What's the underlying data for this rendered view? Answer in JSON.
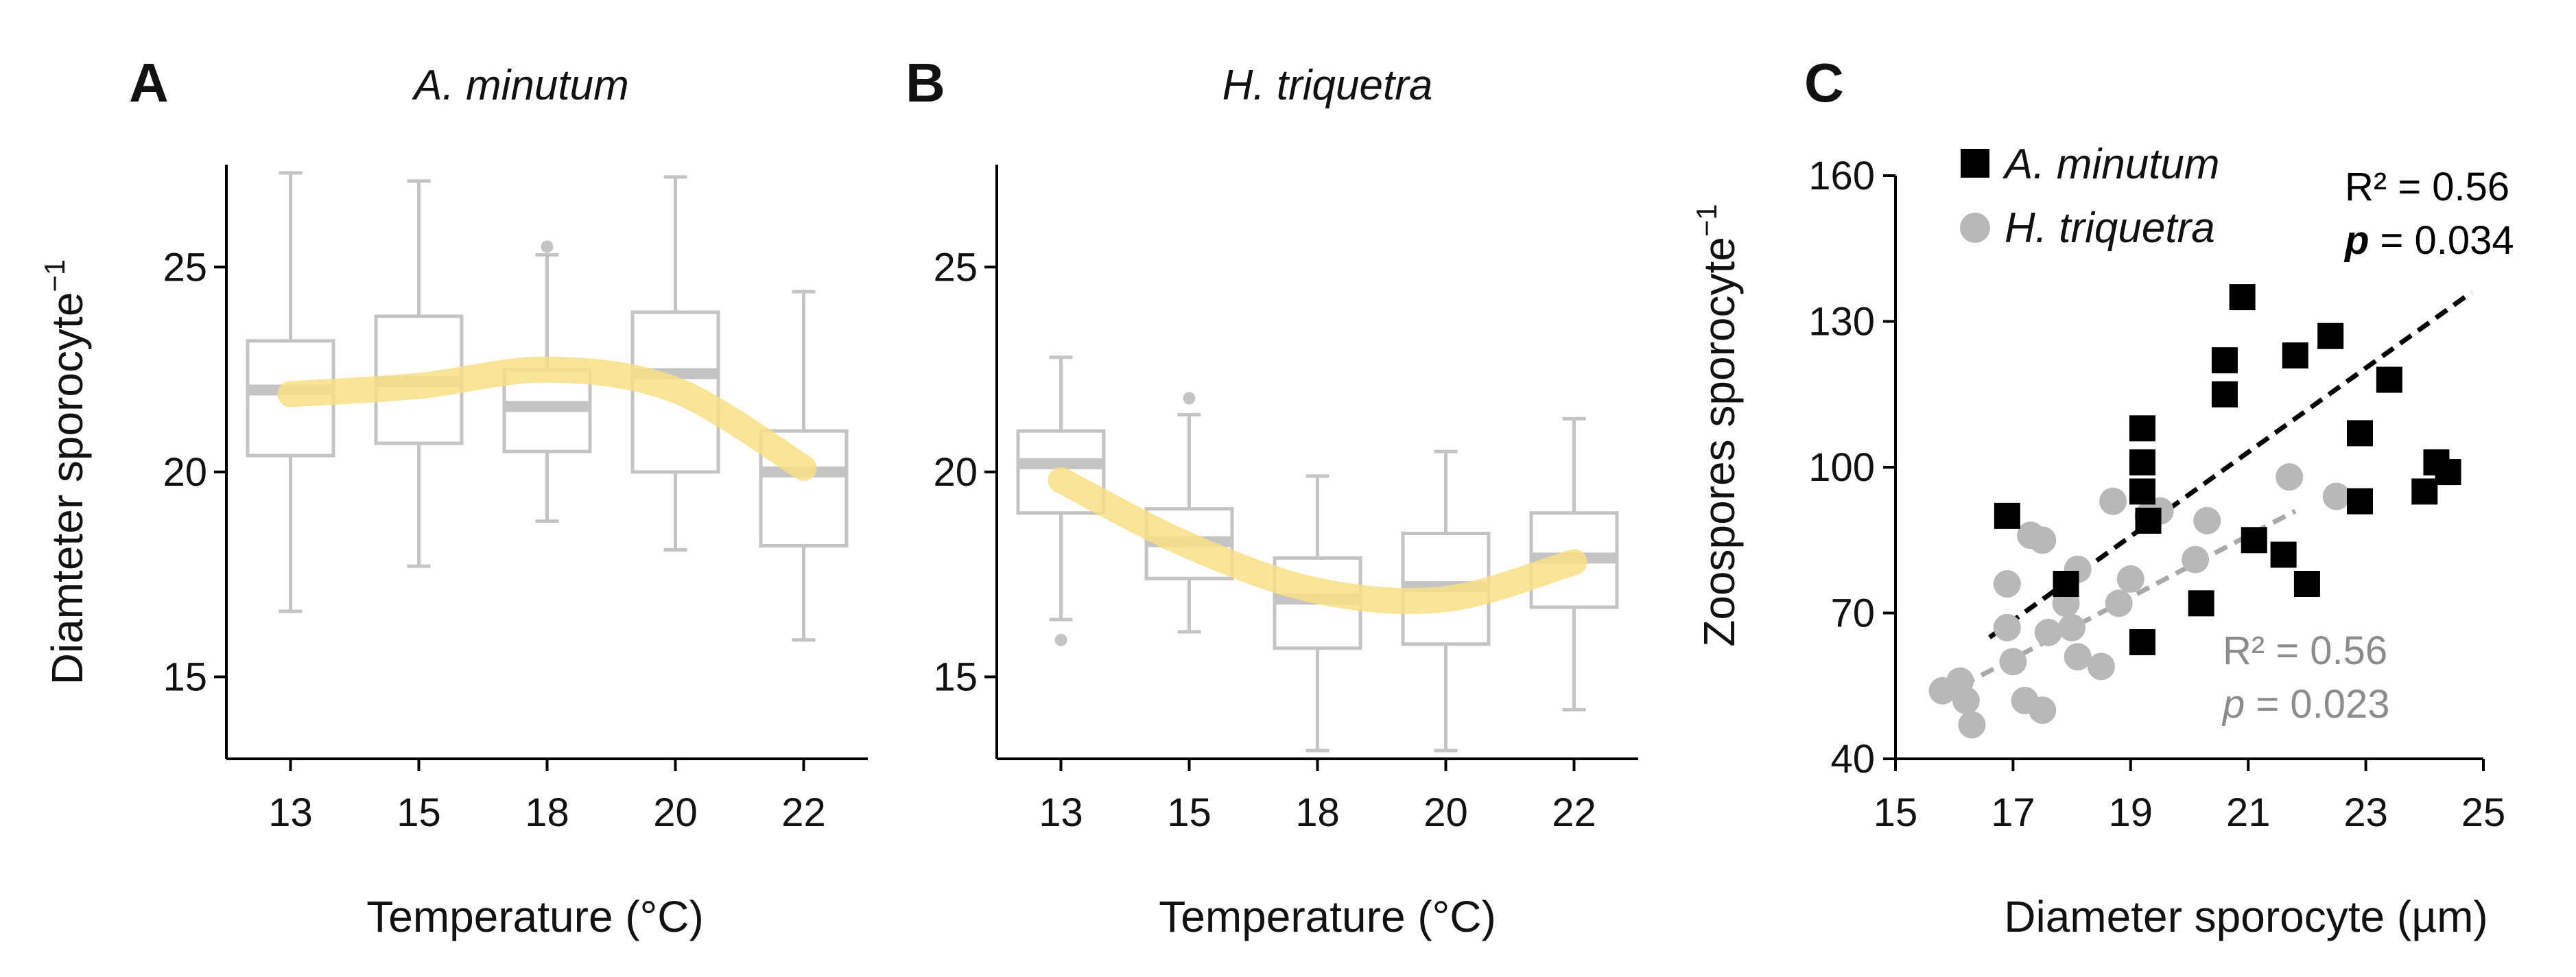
{
  "chart_data": [
    {
      "panel": "A",
      "type": "box",
      "title": "A. minutum",
      "xlabel": "Temperature (°C)",
      "ylabel": "Diamteter sporocyte",
      "ylabel_sup": "−1",
      "categories": [
        "13",
        "15",
        "18",
        "20",
        "22"
      ],
      "ylim": [
        13,
        27.5
      ],
      "yticks": [
        "15",
        "20",
        "25"
      ],
      "ytick_values": [
        15,
        20,
        25
      ],
      "box_color": "#c4c4c4",
      "boxes": [
        {
          "min": 16.6,
          "q1": 20.4,
          "median": 22.0,
          "q3": 23.2,
          "max": 27.3,
          "outliers": []
        },
        {
          "min": 17.7,
          "q1": 20.7,
          "median": 22.2,
          "q3": 23.8,
          "max": 27.1,
          "outliers": []
        },
        {
          "min": 18.8,
          "q1": 20.5,
          "median": 21.6,
          "q3": 22.5,
          "max": 25.3,
          "outliers": [
            25.5
          ]
        },
        {
          "min": 18.1,
          "q1": 20.0,
          "median": 22.4,
          "q3": 23.9,
          "max": 27.2,
          "outliers": []
        },
        {
          "min": 15.9,
          "q1": 18.2,
          "median": 20.0,
          "q3": 21.0,
          "max": 24.4,
          "outliers": []
        }
      ],
      "trend": {
        "color": "#f9df86",
        "values": [
          21.9,
          22.1,
          22.5,
          22.0,
          20.1
        ]
      }
    },
    {
      "panel": "B",
      "type": "box",
      "title": "H. triquetra",
      "xlabel": "Temperature (°C)",
      "categories": [
        "13",
        "15",
        "18",
        "20",
        "22"
      ],
      "ylim": [
        13,
        27.5
      ],
      "yticks": [
        "15",
        "20",
        "25"
      ],
      "ytick_values": [
        15,
        20,
        25
      ],
      "box_color": "#c4c4c4",
      "boxes": [
        {
          "min": 16.4,
          "q1": 19.0,
          "median": 20.2,
          "q3": 21.0,
          "max": 22.8,
          "outliers": [
            15.9
          ]
        },
        {
          "min": 16.1,
          "q1": 17.4,
          "median": 18.3,
          "q3": 19.1,
          "max": 21.4,
          "outliers": [
            21.8
          ]
        },
        {
          "min": 13.2,
          "q1": 15.7,
          "median": 16.9,
          "q3": 17.9,
          "max": 19.9,
          "outliers": []
        },
        {
          "min": 13.2,
          "q1": 15.8,
          "median": 17.2,
          "q3": 18.5,
          "max": 20.5,
          "outliers": []
        },
        {
          "min": 14.2,
          "q1": 16.7,
          "median": 17.9,
          "q3": 19.0,
          "max": 21.3,
          "outliers": []
        }
      ],
      "trend": {
        "color": "#f9df86",
        "values": [
          19.8,
          18.2,
          17.1,
          16.9,
          17.8
        ]
      }
    },
    {
      "panel": "C",
      "type": "scatter",
      "xlabel": "Diameter sporocyte (µm)",
      "ylabel": "Zoospores sporocyte",
      "ylabel_sup": "−1",
      "xlim": [
        15,
        25
      ],
      "ylim": [
        40,
        160
      ],
      "xticks": [
        "15",
        "17",
        "19",
        "21",
        "23",
        "25"
      ],
      "xtick_values": [
        15,
        17,
        19,
        21,
        23,
        25
      ],
      "yticks": [
        "40",
        "70",
        "100",
        "130",
        "160"
      ],
      "ytick_values": [
        40,
        70,
        100,
        130,
        160
      ],
      "series": [
        {
          "name": "A. minutum",
          "marker": "square",
          "color": "#000000",
          "points": [
            [
              16.9,
              90
            ],
            [
              17.9,
              76
            ],
            [
              19.2,
              64
            ],
            [
              19.2,
              108
            ],
            [
              19.2,
              101
            ],
            [
              19.2,
              95
            ],
            [
              19.3,
              89
            ],
            [
              20.2,
              72
            ],
            [
              20.6,
              115
            ],
            [
              20.6,
              122
            ],
            [
              20.9,
              135
            ],
            [
              21.1,
              85
            ],
            [
              21.6,
              82
            ],
            [
              21.8,
              123
            ],
            [
              22.0,
              76
            ],
            [
              22.4,
              127
            ],
            [
              22.9,
              107
            ],
            [
              22.9,
              93
            ],
            [
              23.4,
              118
            ],
            [
              24.0,
              95
            ],
            [
              24.2,
              101
            ],
            [
              24.4,
              99
            ]
          ],
          "fit": {
            "x": [
              16.6,
              24.8
            ],
            "y": [
              65,
              136
            ],
            "r2_label": "R² = 0.56",
            "p_italic": "p",
            "p_label": " = 0.034"
          }
        },
        {
          "name": "H. triquetra",
          "marker": "circle",
          "color": "#b8b8b8",
          "points": [
            [
              15.8,
              54
            ],
            [
              16.1,
              56
            ],
            [
              16.2,
              52
            ],
            [
              16.3,
              47
            ],
            [
              16.9,
              76
            ],
            [
              16.9,
              67
            ],
            [
              17.0,
              60
            ],
            [
              17.2,
              52
            ],
            [
              17.3,
              86
            ],
            [
              17.5,
              85
            ],
            [
              17.5,
              50
            ],
            [
              17.6,
              66
            ],
            [
              17.9,
              72
            ],
            [
              18.0,
              67
            ],
            [
              18.1,
              61
            ],
            [
              18.1,
              79
            ],
            [
              18.5,
              59
            ],
            [
              18.7,
              93
            ],
            [
              18.8,
              72
            ],
            [
              19.0,
              77
            ],
            [
              19.3,
              90
            ],
            [
              19.5,
              91
            ],
            [
              20.1,
              81
            ],
            [
              20.3,
              89
            ],
            [
              21.7,
              98
            ],
            [
              22.5,
              94
            ]
          ],
          "fit": {
            "x": [
              15.8,
              21.8
            ],
            "y": [
              53,
              91
            ],
            "r2_label": "R² = 0.56",
            "p_italic": "p",
            "p_label": " = 0.023"
          }
        }
      ]
    }
  ]
}
